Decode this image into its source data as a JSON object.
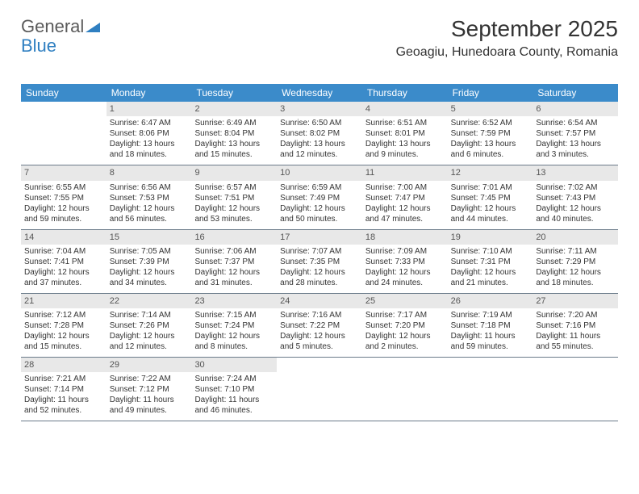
{
  "logo": {
    "word1": "General",
    "word2": "Blue"
  },
  "header": {
    "month_title": "September 2025",
    "location": "Geoagiu, Hunedoara County, Romania"
  },
  "colors": {
    "header_bg": "#3b8bca",
    "header_text": "#ffffff",
    "daynum_bg": "#e8e8e8",
    "border": "#6b7b8a",
    "text": "#333333",
    "logo_blue": "#2f7fc1",
    "logo_gray": "#5a5a5a"
  },
  "weekdays": [
    "Sunday",
    "Monday",
    "Tuesday",
    "Wednesday",
    "Thursday",
    "Friday",
    "Saturday"
  ],
  "weeks": [
    [
      {
        "num": "",
        "sunrise": "",
        "sunset": "",
        "daylight": ""
      },
      {
        "num": "1",
        "sunrise": "Sunrise: 6:47 AM",
        "sunset": "Sunset: 8:06 PM",
        "daylight": "Daylight: 13 hours and 18 minutes."
      },
      {
        "num": "2",
        "sunrise": "Sunrise: 6:49 AM",
        "sunset": "Sunset: 8:04 PM",
        "daylight": "Daylight: 13 hours and 15 minutes."
      },
      {
        "num": "3",
        "sunrise": "Sunrise: 6:50 AM",
        "sunset": "Sunset: 8:02 PM",
        "daylight": "Daylight: 13 hours and 12 minutes."
      },
      {
        "num": "4",
        "sunrise": "Sunrise: 6:51 AM",
        "sunset": "Sunset: 8:01 PM",
        "daylight": "Daylight: 13 hours and 9 minutes."
      },
      {
        "num": "5",
        "sunrise": "Sunrise: 6:52 AM",
        "sunset": "Sunset: 7:59 PM",
        "daylight": "Daylight: 13 hours and 6 minutes."
      },
      {
        "num": "6",
        "sunrise": "Sunrise: 6:54 AM",
        "sunset": "Sunset: 7:57 PM",
        "daylight": "Daylight: 13 hours and 3 minutes."
      }
    ],
    [
      {
        "num": "7",
        "sunrise": "Sunrise: 6:55 AM",
        "sunset": "Sunset: 7:55 PM",
        "daylight": "Daylight: 12 hours and 59 minutes."
      },
      {
        "num": "8",
        "sunrise": "Sunrise: 6:56 AM",
        "sunset": "Sunset: 7:53 PM",
        "daylight": "Daylight: 12 hours and 56 minutes."
      },
      {
        "num": "9",
        "sunrise": "Sunrise: 6:57 AM",
        "sunset": "Sunset: 7:51 PM",
        "daylight": "Daylight: 12 hours and 53 minutes."
      },
      {
        "num": "10",
        "sunrise": "Sunrise: 6:59 AM",
        "sunset": "Sunset: 7:49 PM",
        "daylight": "Daylight: 12 hours and 50 minutes."
      },
      {
        "num": "11",
        "sunrise": "Sunrise: 7:00 AM",
        "sunset": "Sunset: 7:47 PM",
        "daylight": "Daylight: 12 hours and 47 minutes."
      },
      {
        "num": "12",
        "sunrise": "Sunrise: 7:01 AM",
        "sunset": "Sunset: 7:45 PM",
        "daylight": "Daylight: 12 hours and 44 minutes."
      },
      {
        "num": "13",
        "sunrise": "Sunrise: 7:02 AM",
        "sunset": "Sunset: 7:43 PM",
        "daylight": "Daylight: 12 hours and 40 minutes."
      }
    ],
    [
      {
        "num": "14",
        "sunrise": "Sunrise: 7:04 AM",
        "sunset": "Sunset: 7:41 PM",
        "daylight": "Daylight: 12 hours and 37 minutes."
      },
      {
        "num": "15",
        "sunrise": "Sunrise: 7:05 AM",
        "sunset": "Sunset: 7:39 PM",
        "daylight": "Daylight: 12 hours and 34 minutes."
      },
      {
        "num": "16",
        "sunrise": "Sunrise: 7:06 AM",
        "sunset": "Sunset: 7:37 PM",
        "daylight": "Daylight: 12 hours and 31 minutes."
      },
      {
        "num": "17",
        "sunrise": "Sunrise: 7:07 AM",
        "sunset": "Sunset: 7:35 PM",
        "daylight": "Daylight: 12 hours and 28 minutes."
      },
      {
        "num": "18",
        "sunrise": "Sunrise: 7:09 AM",
        "sunset": "Sunset: 7:33 PM",
        "daylight": "Daylight: 12 hours and 24 minutes."
      },
      {
        "num": "19",
        "sunrise": "Sunrise: 7:10 AM",
        "sunset": "Sunset: 7:31 PM",
        "daylight": "Daylight: 12 hours and 21 minutes."
      },
      {
        "num": "20",
        "sunrise": "Sunrise: 7:11 AM",
        "sunset": "Sunset: 7:29 PM",
        "daylight": "Daylight: 12 hours and 18 minutes."
      }
    ],
    [
      {
        "num": "21",
        "sunrise": "Sunrise: 7:12 AM",
        "sunset": "Sunset: 7:28 PM",
        "daylight": "Daylight: 12 hours and 15 minutes."
      },
      {
        "num": "22",
        "sunrise": "Sunrise: 7:14 AM",
        "sunset": "Sunset: 7:26 PM",
        "daylight": "Daylight: 12 hours and 12 minutes."
      },
      {
        "num": "23",
        "sunrise": "Sunrise: 7:15 AM",
        "sunset": "Sunset: 7:24 PM",
        "daylight": "Daylight: 12 hours and 8 minutes."
      },
      {
        "num": "24",
        "sunrise": "Sunrise: 7:16 AM",
        "sunset": "Sunset: 7:22 PM",
        "daylight": "Daylight: 12 hours and 5 minutes."
      },
      {
        "num": "25",
        "sunrise": "Sunrise: 7:17 AM",
        "sunset": "Sunset: 7:20 PM",
        "daylight": "Daylight: 12 hours and 2 minutes."
      },
      {
        "num": "26",
        "sunrise": "Sunrise: 7:19 AM",
        "sunset": "Sunset: 7:18 PM",
        "daylight": "Daylight: 11 hours and 59 minutes."
      },
      {
        "num": "27",
        "sunrise": "Sunrise: 7:20 AM",
        "sunset": "Sunset: 7:16 PM",
        "daylight": "Daylight: 11 hours and 55 minutes."
      }
    ],
    [
      {
        "num": "28",
        "sunrise": "Sunrise: 7:21 AM",
        "sunset": "Sunset: 7:14 PM",
        "daylight": "Daylight: 11 hours and 52 minutes."
      },
      {
        "num": "29",
        "sunrise": "Sunrise: 7:22 AM",
        "sunset": "Sunset: 7:12 PM",
        "daylight": "Daylight: 11 hours and 49 minutes."
      },
      {
        "num": "30",
        "sunrise": "Sunrise: 7:24 AM",
        "sunset": "Sunset: 7:10 PM",
        "daylight": "Daylight: 11 hours and 46 minutes."
      },
      {
        "num": "",
        "sunrise": "",
        "sunset": "",
        "daylight": ""
      },
      {
        "num": "",
        "sunrise": "",
        "sunset": "",
        "daylight": ""
      },
      {
        "num": "",
        "sunrise": "",
        "sunset": "",
        "daylight": ""
      },
      {
        "num": "",
        "sunrise": "",
        "sunset": "",
        "daylight": ""
      }
    ]
  ]
}
